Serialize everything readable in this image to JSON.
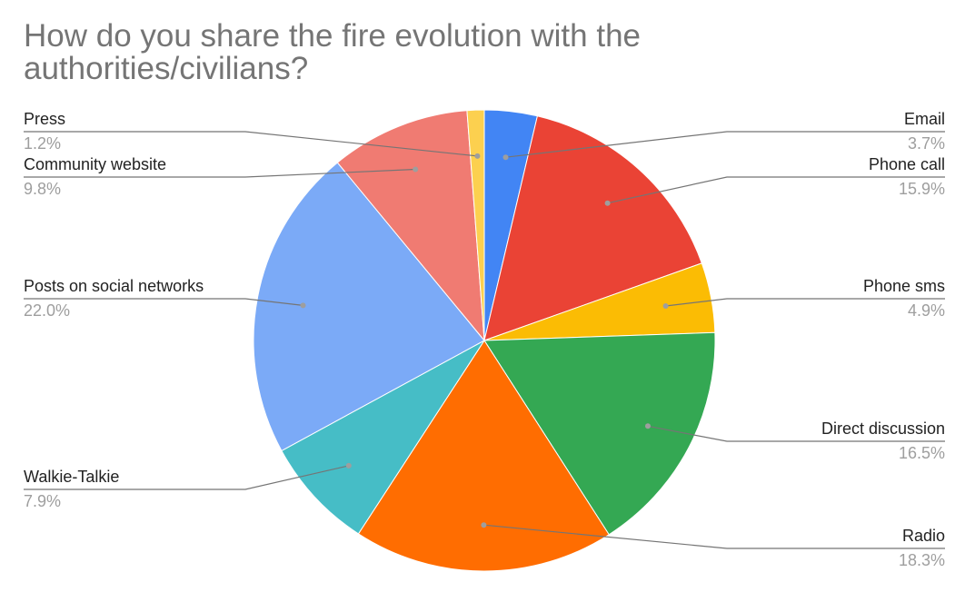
{
  "chart_data": {
    "type": "pie",
    "title": "How do you share the fire evolution with the authorities/civilians?",
    "slices": [
      {
        "label": "Email",
        "value": 3.7,
        "display": "3.7%",
        "color": "#4285F4"
      },
      {
        "label": "Phone call",
        "value": 15.9,
        "display": "15.9%",
        "color": "#EA4335"
      },
      {
        "label": "Phone sms",
        "value": 4.9,
        "display": "4.9%",
        "color": "#FBBC04"
      },
      {
        "label": "Direct discussion",
        "value": 16.5,
        "display": "16.5%",
        "color": "#34A853"
      },
      {
        "label": "Radio",
        "value": 18.3,
        "display": "18.3%",
        "color": "#FF6D01"
      },
      {
        "label": "Walkie-Talkie",
        "value": 7.9,
        "display": "7.9%",
        "color": "#46BDC6"
      },
      {
        "label": "Posts on social networks",
        "value": 22.0,
        "display": "22.0%",
        "color": "#7BAAF7"
      },
      {
        "label": "Community website",
        "value": 9.8,
        "display": "9.8%",
        "color": "#F07B72"
      },
      {
        "label": "Press",
        "value": 1.2,
        "display": "1.2%",
        "color": "#FCD04F"
      }
    ],
    "legend": "none",
    "labels": "outside with leader lines"
  }
}
